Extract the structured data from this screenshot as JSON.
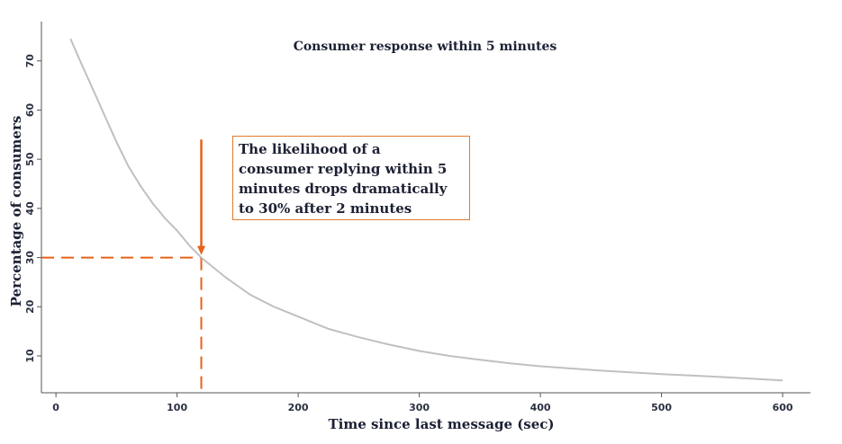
{
  "chart_data": {
    "type": "line",
    "title": "Consumer response within 5 minutes",
    "xlabel": "Time since last message (sec)",
    "ylabel": "Percentage of consumers",
    "xlim": [
      -12,
      623
    ],
    "ylim": [
      2.5,
      78
    ],
    "xticks": [
      0,
      100,
      200,
      300,
      400,
      500,
      600
    ],
    "yticks": [
      10,
      20,
      30,
      40,
      50,
      60,
      70
    ],
    "grid": false,
    "series": [
      {
        "color": "#c0c0c0",
        "x": [
          12,
          20,
          30,
          40,
          50,
          60,
          70,
          80,
          90,
          100,
          110,
          120,
          140,
          160,
          180,
          200,
          225,
          250,
          275,
          300,
          325,
          350,
          375,
          400,
          450,
          500,
          550,
          600
        ],
        "y": [
          74.5,
          70,
          64.5,
          59,
          53.5,
          48.5,
          44.5,
          41,
          38,
          35.5,
          32.5,
          30,
          26,
          22.5,
          20,
          18,
          15.5,
          13.8,
          12.3,
          11,
          10,
          9.2,
          8.5,
          7.9,
          7,
          6.3,
          5.7,
          5
        ]
      }
    ],
    "annotations": [
      {
        "text_lines": [
          "The likelihood of a",
          "consumer replying within 5",
          "minutes drops dramatically",
          "to 30% after 2 minutes"
        ],
        "color": "#e8611a",
        "point": {
          "x": 120,
          "y": 30
        },
        "arrow_from_y": 54
      }
    ]
  }
}
